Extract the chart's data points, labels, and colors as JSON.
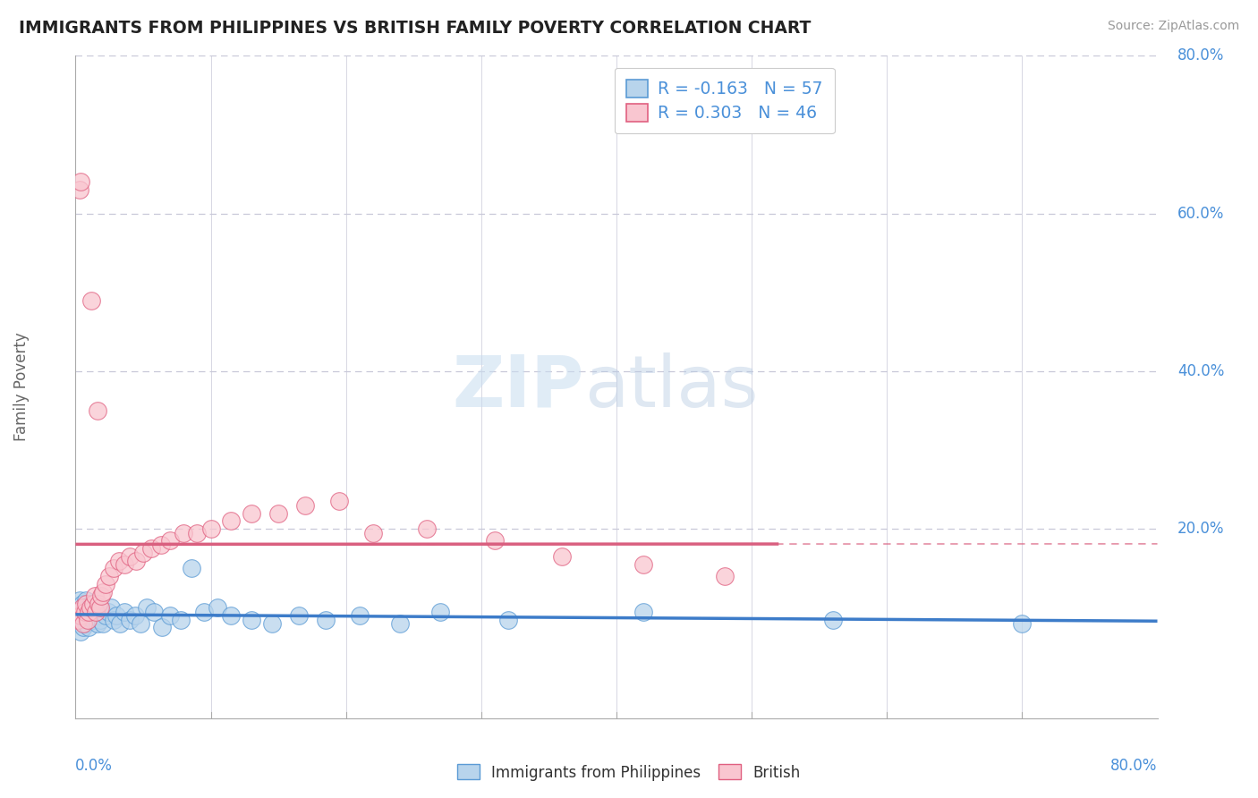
{
  "title": "IMMIGRANTS FROM PHILIPPINES VS BRITISH FAMILY POVERTY CORRELATION CHART",
  "source": "Source: ZipAtlas.com",
  "ylabel": "Family Poverty",
  "legend_label1": "Immigrants from Philippines",
  "legend_label2": "British",
  "watermark_zip": "ZIP",
  "watermark_atlas": "atlas",
  "r1": -0.163,
  "n1": 57,
  "r2": 0.303,
  "n2": 46,
  "xmin": 0.0,
  "xmax": 0.8,
  "ymin": -0.04,
  "ymax": 0.8,
  "color_blue_fill": "#b8d4ec",
  "color_blue_edge": "#5b9bd5",
  "color_pink_fill": "#f9c6d0",
  "color_pink_edge": "#e06080",
  "color_blue_line": "#3d7cc9",
  "color_pink_line": "#d95f7f",
  "color_text_blue": "#4a90d9",
  "grid_color": "#c8c8d8",
  "ytick_labels": [
    "20.0%",
    "40.0%",
    "60.0%",
    "80.0%"
  ],
  "ytick_vals": [
    0.2,
    0.4,
    0.6,
    0.8
  ],
  "blue_x": [
    0.001,
    0.002,
    0.003,
    0.003,
    0.004,
    0.005,
    0.005,
    0.006,
    0.006,
    0.007,
    0.007,
    0.008,
    0.008,
    0.009,
    0.009,
    0.01,
    0.01,
    0.011,
    0.012,
    0.013,
    0.014,
    0.015,
    0.016,
    0.017,
    0.018,
    0.019,
    0.02,
    0.022,
    0.024,
    0.026,
    0.028,
    0.03,
    0.033,
    0.036,
    0.04,
    0.044,
    0.048,
    0.053,
    0.058,
    0.064,
    0.07,
    0.078,
    0.086,
    0.095,
    0.105,
    0.115,
    0.13,
    0.145,
    0.165,
    0.185,
    0.21,
    0.24,
    0.27,
    0.32,
    0.42,
    0.56,
    0.7
  ],
  "blue_y": [
    0.1,
    0.08,
    0.09,
    0.11,
    0.07,
    0.095,
    0.105,
    0.085,
    0.075,
    0.1,
    0.09,
    0.08,
    0.11,
    0.095,
    0.085,
    0.1,
    0.075,
    0.09,
    0.105,
    0.085,
    0.095,
    0.1,
    0.08,
    0.09,
    0.085,
    0.095,
    0.08,
    0.09,
    0.095,
    0.1,
    0.085,
    0.09,
    0.08,
    0.095,
    0.085,
    0.09,
    0.08,
    0.1,
    0.095,
    0.075,
    0.09,
    0.085,
    0.15,
    0.095,
    0.1,
    0.09,
    0.085,
    0.08,
    0.09,
    0.085,
    0.09,
    0.08,
    0.095,
    0.085,
    0.095,
    0.085,
    0.08
  ],
  "pink_x": [
    0.001,
    0.002,
    0.003,
    0.004,
    0.004,
    0.005,
    0.006,
    0.007,
    0.008,
    0.009,
    0.01,
    0.011,
    0.012,
    0.013,
    0.014,
    0.015,
    0.016,
    0.017,
    0.018,
    0.019,
    0.02,
    0.022,
    0.025,
    0.028,
    0.032,
    0.036,
    0.04,
    0.045,
    0.05,
    0.056,
    0.063,
    0.07,
    0.08,
    0.09,
    0.1,
    0.115,
    0.13,
    0.15,
    0.17,
    0.195,
    0.22,
    0.26,
    0.31,
    0.36,
    0.42,
    0.48
  ],
  "pink_y": [
    0.095,
    0.085,
    0.63,
    0.64,
    0.09,
    0.1,
    0.08,
    0.095,
    0.105,
    0.085,
    0.095,
    0.1,
    0.49,
    0.105,
    0.115,
    0.095,
    0.35,
    0.105,
    0.1,
    0.115,
    0.12,
    0.13,
    0.14,
    0.15,
    0.16,
    0.155,
    0.165,
    0.16,
    0.17,
    0.175,
    0.18,
    0.185,
    0.195,
    0.195,
    0.2,
    0.21,
    0.22,
    0.22,
    0.23,
    0.235,
    0.195,
    0.2,
    0.185,
    0.165,
    0.155,
    0.14
  ]
}
